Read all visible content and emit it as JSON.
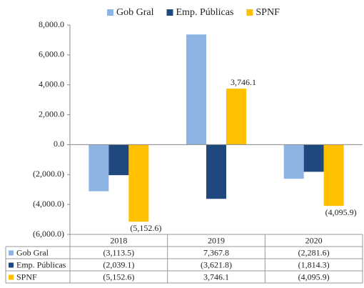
{
  "chart_data": {
    "type": "bar",
    "categories": [
      "2018",
      "2019",
      "2020"
    ],
    "series": [
      {
        "name": "Gob Gral",
        "color": "#8db4e2",
        "values": [
          -3113.5,
          7367.8,
          -2281.6
        ],
        "value_labels": [
          "(3,113.5)",
          "7,367.8",
          "(2,281.6)"
        ]
      },
      {
        "name": "Emp. Públicas",
        "color": "#1f497d",
        "values": [
          -2039.1,
          -3621.8,
          -1814.3
        ],
        "value_labels": [
          "(2,039.1)",
          "(3,621.8)",
          "(1,814.3)"
        ]
      },
      {
        "name": "SPNF",
        "color": "#ffc000",
        "values": [
          -5152.6,
          3746.1,
          -4095.9
        ],
        "value_labels": [
          "(5,152.6)",
          "3,746.1",
          "(4,095.9)"
        ]
      }
    ],
    "ylim": [
      -6000,
      8000
    ],
    "yticks": [
      {
        "value": -6000,
        "label": "(6,000.0)"
      },
      {
        "value": -4000,
        "label": "(4,000.0)"
      },
      {
        "value": -2000,
        "label": "(2,000.0)"
      },
      {
        "value": 0,
        "label": "0.0"
      },
      {
        "value": 2000,
        "label": "2,000.0"
      },
      {
        "value": 4000,
        "label": "4,000.0"
      },
      {
        "value": 6000,
        "label": "6,000.0"
      },
      {
        "value": 8000,
        "label": "8,000.0"
      }
    ],
    "grid": false,
    "legend": "top",
    "data_labels_series": 2
  }
}
